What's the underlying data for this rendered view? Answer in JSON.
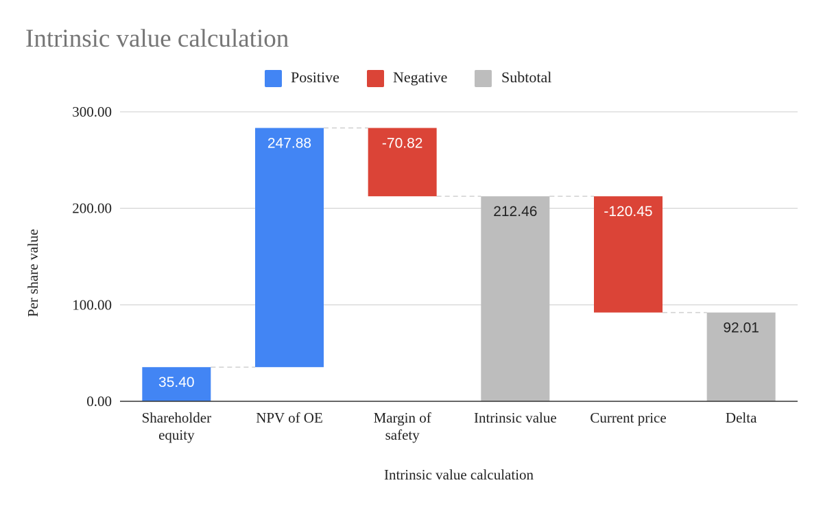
{
  "chart_data": {
    "type": "waterfall",
    "title": "Intrinsic value calculation",
    "xlabel": "Intrinsic value calculation",
    "ylabel": "Per share value",
    "ylim": [
      0,
      300
    ],
    "yticks": [
      0,
      100,
      200,
      300
    ],
    "ytick_labels": [
      "0.00",
      "100.00",
      "200.00",
      "300.00"
    ],
    "grid": true,
    "legend_position": "top-center",
    "legend": [
      {
        "label": "Positive",
        "color": "#4285f4"
      },
      {
        "label": "Negative",
        "color": "#db4437"
      },
      {
        "label": "Subtotal",
        "color": "#bdbdbd"
      }
    ],
    "categories": [
      {
        "label_lines": [
          "Shareholder",
          "equity"
        ],
        "value": 35.4,
        "kind": "positive",
        "label": "35.40"
      },
      {
        "label_lines": [
          "NPV of OE"
        ],
        "value": 247.88,
        "kind": "positive",
        "label": "247.88"
      },
      {
        "label_lines": [
          "Margin of",
          "safety"
        ],
        "value": -70.82,
        "kind": "negative",
        "label": "-70.82"
      },
      {
        "label_lines": [
          "Intrinsic value"
        ],
        "value": 212.46,
        "kind": "subtotal",
        "label": "212.46"
      },
      {
        "label_lines": [
          "Current price"
        ],
        "value": -120.45,
        "kind": "negative",
        "label": "-120.45"
      },
      {
        "label_lines": [
          "Delta"
        ],
        "value": 92.01,
        "kind": "subtotal",
        "label": "92.01"
      }
    ]
  }
}
